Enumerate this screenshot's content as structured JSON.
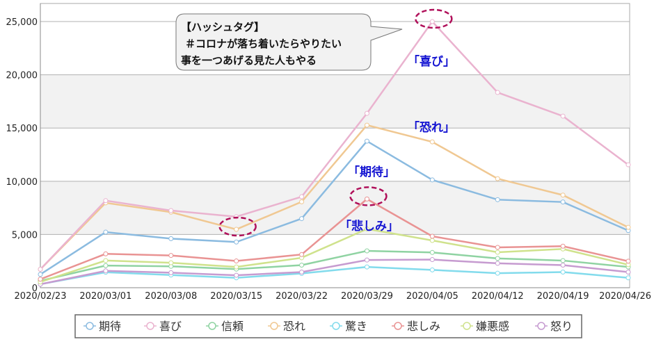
{
  "chart_data": {
    "type": "line",
    "title": "",
    "xlabel": "",
    "ylabel": "",
    "ylim": [
      0,
      26700
    ],
    "yticks": [
      0,
      5000,
      10000,
      15000,
      20000,
      25000
    ],
    "ytick_labels": [
      "0",
      "5,000",
      "10,000",
      "15,000",
      "20,000",
      "25,000"
    ],
    "grid": "horizontal, alternating gray bands",
    "legend_placement": "bottom",
    "categories": [
      "2020/02/23",
      "2020/03/01",
      "2020/03/08",
      "2020/03/15",
      "2020/03/22",
      "2020/03/29",
      "2020/04/05",
      "2020/04/12",
      "2020/04/19",
      "2020/04/26"
    ],
    "series": [
      {
        "name": "期待",
        "color": "#8bbbe0",
        "values": [
          1250,
          5220,
          4610,
          4290,
          6490,
          13770,
          10130,
          8270,
          8050,
          5370
        ]
      },
      {
        "name": "喜び",
        "color": "#eab3cf",
        "values": [
          1730,
          8180,
          7250,
          6670,
          8550,
          16380,
          25000,
          18340,
          16120,
          11550
        ]
      },
      {
        "name": "信頼",
        "color": "#8fd3a2",
        "values": [
          650,
          2080,
          2010,
          1750,
          2120,
          3460,
          3310,
          2750,
          2550,
          1950
        ]
      },
      {
        "name": "恐れ",
        "color": "#f0c892",
        "values": [
          1730,
          7970,
          7100,
          5480,
          8070,
          15270,
          13700,
          10240,
          8700,
          5670
        ]
      },
      {
        "name": "驚き",
        "color": "#82dbec",
        "values": [
          330,
          1450,
          1190,
          930,
          1340,
          1950,
          1670,
          1360,
          1470,
          930
        ]
      },
      {
        "name": "悲しみ",
        "color": "#e99393",
        "values": [
          800,
          3180,
          3030,
          2510,
          3120,
          8330,
          4830,
          3790,
          3900,
          2490
        ]
      },
      {
        "name": "嫌悪感",
        "color": "#cfe28c",
        "values": [
          540,
          2550,
          2340,
          1950,
          2810,
          5520,
          4440,
          3330,
          3640,
          2160
        ]
      },
      {
        "name": "怒り",
        "color": "#c69bd0",
        "values": [
          325,
          1580,
          1410,
          1170,
          1470,
          2600,
          2640,
          2290,
          2120,
          1470
        ]
      }
    ],
    "annotations": {
      "callout": [
        "【ハッシュタグ】",
        "＃コロナが落ち着いたらやりたい",
        "事を一つあげる見た人もやる"
      ],
      "labels": [
        {
          "text": "「喜び」",
          "series": "喜び"
        },
        {
          "text": "「恐れ」",
          "series": "恐れ"
        },
        {
          "text": "「期待」",
          "series": "期待"
        },
        {
          "text": "「悲しみ」",
          "series": "悲しみ"
        }
      ],
      "highlight_color": "#b0105a",
      "highlights": [
        {
          "series": "恐れ",
          "category": "2020/03/15"
        },
        {
          "series": "悲しみ",
          "category": "2020/03/29"
        },
        {
          "series": "喜び",
          "category": "2020/04/05"
        }
      ]
    }
  }
}
